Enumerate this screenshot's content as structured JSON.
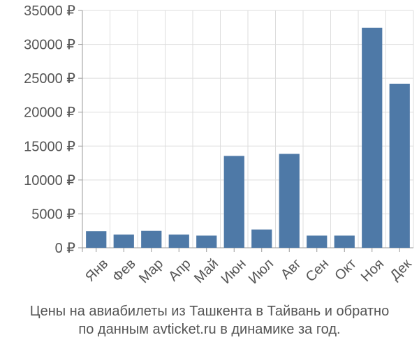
{
  "chart_data": {
    "type": "bar",
    "categories": [
      "Янв",
      "Фев",
      "Мар",
      "Апр",
      "Май",
      "Июн",
      "Июл",
      "Авг",
      "Сен",
      "Окт",
      "Ноя",
      "Дек"
    ],
    "values": [
      2450,
      1950,
      2500,
      1950,
      1800,
      13550,
      2700,
      13850,
      1800,
      1800,
      32450,
      24200
    ],
    "ylim": [
      0,
      35000
    ],
    "yticks": [
      0,
      5000,
      10000,
      15000,
      20000,
      25000,
      30000,
      35000
    ],
    "ytick_labels": [
      "0 ₽",
      "5000 ₽",
      "10000 ₽",
      "15000 ₽",
      "20000 ₽",
      "25000 ₽",
      "30000 ₽",
      "35000 ₽"
    ],
    "grid": true,
    "bar_color": "#4e79a7",
    "grid_color": "#dddddd",
    "title": "",
    "xlabel": "",
    "ylabel": ""
  },
  "caption": {
    "line1": "Цены на авиабилеты из Ташкента в Тайвань и обратно",
    "line2": "по данным avticket.ru в динамике за год."
  }
}
